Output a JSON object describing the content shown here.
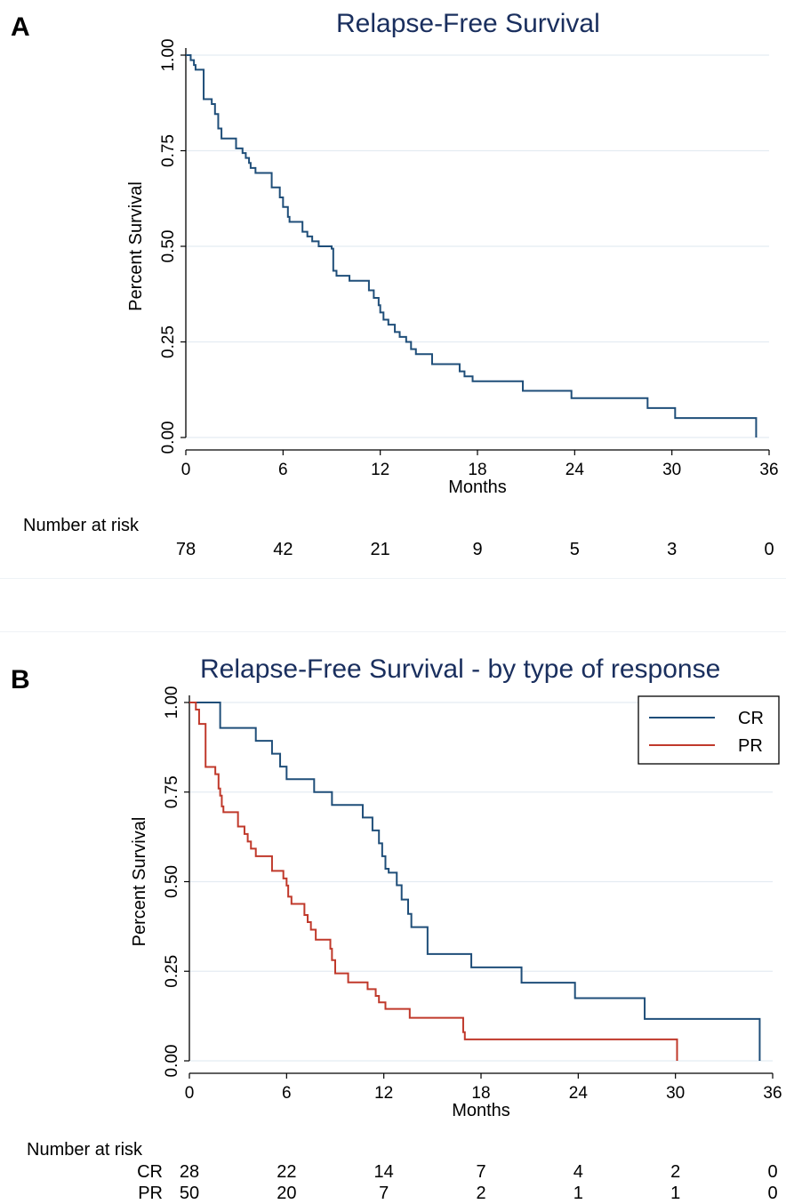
{
  "panel_a": {
    "letter": "A",
    "chart_data": {
      "type": "line",
      "title": "Relapse-Free Survival",
      "xlabel": "Months",
      "ylabel": "Percent Survival",
      "xlim": [
        0,
        36
      ],
      "ylim": [
        0,
        1
      ],
      "xticks": [
        0,
        6,
        12,
        18,
        24,
        30,
        36
      ],
      "yticks": [
        0.0,
        0.25,
        0.5,
        0.75,
        1.0
      ],
      "ytick_labels": [
        "0.00",
        "0.25",
        "0.50",
        "0.75",
        "1.00"
      ],
      "grid": "horizontal",
      "series": [
        {
          "color": "#1f4e79",
          "steps": [
            [
              0,
              1.0
            ],
            [
              0.3,
              0.987
            ],
            [
              0.5,
              0.974
            ],
            [
              0.6,
              0.962
            ],
            [
              1.1,
              0.885
            ],
            [
              1.6,
              0.872
            ],
            [
              1.8,
              0.846
            ],
            [
              2.0,
              0.808
            ],
            [
              2.2,
              0.782
            ],
            [
              3.1,
              0.756
            ],
            [
              3.5,
              0.744
            ],
            [
              3.7,
              0.731
            ],
            [
              3.9,
              0.718
            ],
            [
              4.0,
              0.705
            ],
            [
              4.3,
              0.692
            ],
            [
              5.3,
              0.654
            ],
            [
              5.8,
              0.628
            ],
            [
              6.0,
              0.603
            ],
            [
              6.3,
              0.577
            ],
            [
              6.4,
              0.564
            ],
            [
              7.2,
              0.538
            ],
            [
              7.5,
              0.526
            ],
            [
              7.8,
              0.513
            ],
            [
              8.2,
              0.5
            ],
            [
              9.0,
              0.494
            ],
            [
              9.1,
              0.436
            ],
            [
              9.3,
              0.423
            ],
            [
              10.1,
              0.41
            ],
            [
              11.3,
              0.385
            ],
            [
              11.6,
              0.365
            ],
            [
              11.9,
              0.346
            ],
            [
              12.0,
              0.327
            ],
            [
              12.2,
              0.308
            ],
            [
              12.5,
              0.295
            ],
            [
              12.9,
              0.276
            ],
            [
              13.2,
              0.263
            ],
            [
              13.6,
              0.25
            ],
            [
              13.9,
              0.231
            ],
            [
              14.2,
              0.218
            ],
            [
              15.2,
              0.192
            ],
            [
              16.9,
              0.173
            ],
            [
              17.2,
              0.16
            ],
            [
              17.7,
              0.147
            ],
            [
              20.8,
              0.122
            ],
            [
              23.8,
              0.103
            ],
            [
              28.5,
              0.077
            ],
            [
              30.2,
              0.051
            ],
            [
              35.2,
              0.0
            ]
          ]
        }
      ]
    },
    "risk_table": {
      "title": "Number at risk",
      "times": [
        0,
        6,
        12,
        18,
        24,
        30,
        36
      ],
      "rows": [
        {
          "label": "",
          "values": [
            "78",
            "42",
            "21",
            "9",
            "5",
            "3",
            "0"
          ]
        }
      ]
    }
  },
  "panel_b": {
    "letter": "B",
    "chart_data": {
      "type": "line",
      "title": "Relapse-Free Survival - by type of response",
      "xlabel": "Months",
      "ylabel": "Percent Survival",
      "xlim": [
        0,
        36
      ],
      "ylim": [
        0,
        1
      ],
      "xticks": [
        0,
        6,
        12,
        18,
        24,
        30,
        36
      ],
      "yticks": [
        0.0,
        0.25,
        0.5,
        0.75,
        1.0
      ],
      "ytick_labels": [
        "0.00",
        "0.25",
        "0.50",
        "0.75",
        "1.00"
      ],
      "grid": "horizontal",
      "legend_position": "top-right",
      "series": [
        {
          "name": "CR",
          "color": "#1f4e79",
          "steps": [
            [
              0,
              1.0
            ],
            [
              1.9,
              0.929
            ],
            [
              4.1,
              0.893
            ],
            [
              5.1,
              0.857
            ],
            [
              5.6,
              0.821
            ],
            [
              6.0,
              0.786
            ],
            [
              7.7,
              0.75
            ],
            [
              8.8,
              0.714
            ],
            [
              10.7,
              0.679
            ],
            [
              11.3,
              0.643
            ],
            [
              11.7,
              0.607
            ],
            [
              11.9,
              0.571
            ],
            [
              12.1,
              0.536
            ],
            [
              12.3,
              0.525
            ],
            [
              12.8,
              0.49
            ],
            [
              13.1,
              0.45
            ],
            [
              13.5,
              0.41
            ],
            [
              13.7,
              0.373
            ],
            [
              14.7,
              0.298
            ],
            [
              17.4,
              0.261
            ],
            [
              20.5,
              0.218
            ],
            [
              23.8,
              0.175
            ],
            [
              28.1,
              0.117
            ],
            [
              35.2,
              0.0
            ]
          ]
        },
        {
          "name": "PR",
          "color": "#c0392b",
          "steps": [
            [
              0,
              1.0
            ],
            [
              0.4,
              0.98
            ],
            [
              0.6,
              0.94
            ],
            [
              1.0,
              0.82
            ],
            [
              1.6,
              0.8
            ],
            [
              1.8,
              0.76
            ],
            [
              1.9,
              0.74
            ],
            [
              2.0,
              0.71
            ],
            [
              2.1,
              0.694
            ],
            [
              3.0,
              0.654
            ],
            [
              3.4,
              0.633
            ],
            [
              3.6,
              0.612
            ],
            [
              3.8,
              0.592
            ],
            [
              4.1,
              0.571
            ],
            [
              5.1,
              0.53
            ],
            [
              5.8,
              0.509
            ],
            [
              6.0,
              0.489
            ],
            [
              6.1,
              0.458
            ],
            [
              6.3,
              0.438
            ],
            [
              7.1,
              0.407
            ],
            [
              7.3,
              0.387
            ],
            [
              7.5,
              0.366
            ],
            [
              7.8,
              0.338
            ],
            [
              8.7,
              0.313
            ],
            [
              8.8,
              0.281
            ],
            [
              9.0,
              0.244
            ],
            [
              9.8,
              0.219
            ],
            [
              11.0,
              0.2
            ],
            [
              11.5,
              0.181
            ],
            [
              11.7,
              0.163
            ],
            [
              12.1,
              0.145
            ],
            [
              13.6,
              0.12
            ],
            [
              16.9,
              0.08
            ],
            [
              17.0,
              0.06
            ],
            [
              30.1,
              0.0
            ]
          ]
        }
      ]
    },
    "risk_table": {
      "title": "Number at risk",
      "times": [
        0,
        6,
        12,
        18,
        24,
        30,
        36
      ],
      "rows": [
        {
          "label": "CR",
          "values": [
            "28",
            "22",
            "14",
            "7",
            "4",
            "2",
            "0"
          ]
        },
        {
          "label": "PR",
          "values": [
            "50",
            "20",
            "7",
            "2",
            "1",
            "1",
            "0"
          ]
        }
      ]
    }
  }
}
